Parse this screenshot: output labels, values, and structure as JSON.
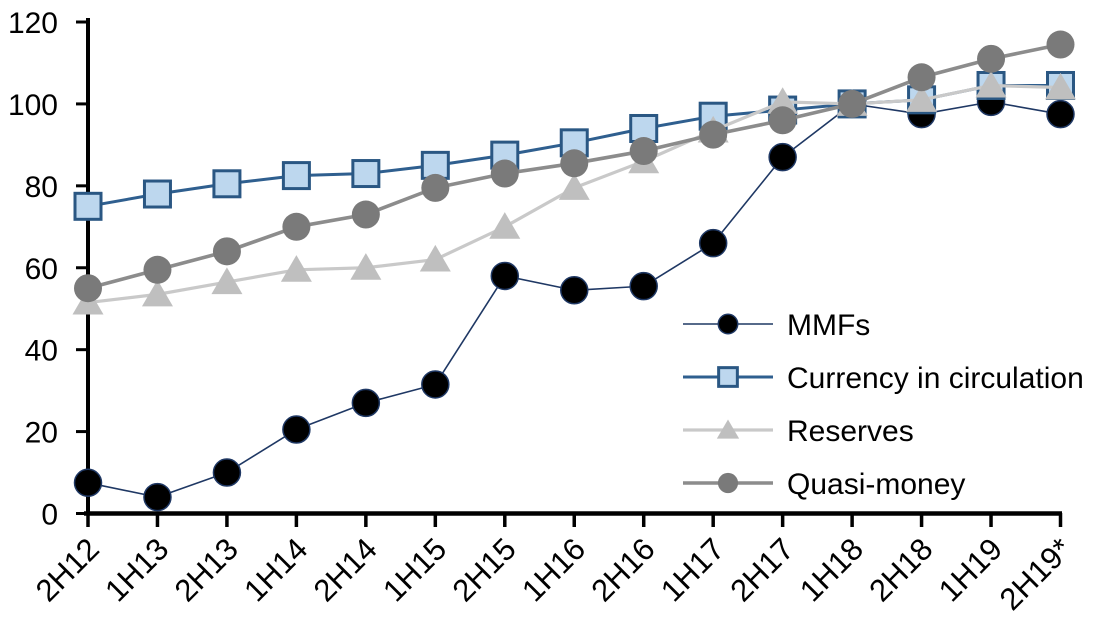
{
  "chart_data": {
    "type": "line",
    "title": "",
    "xlabel": "",
    "ylabel": "",
    "grid": false,
    "background_color": "#ffffff",
    "axis_color": "#000000",
    "ylim": [
      0,
      120
    ],
    "yticks": [
      0,
      20,
      40,
      60,
      80,
      100,
      120
    ],
    "y_tick_labels": [
      "0",
      "20",
      "40",
      "60",
      "80",
      "100",
      "120"
    ],
    "categories": [
      "2H12",
      "1H13",
      "2H13",
      "1H14",
      "2H14",
      "1H15",
      "2H15",
      "1H16",
      "2H16",
      "1H17",
      "2H17",
      "1H18",
      "2H18",
      "1H19",
      "2H19*"
    ],
    "legend_position": "inside-right",
    "series": [
      {
        "name": "MMFs",
        "values": [
          7.5,
          4,
          10,
          20.5,
          27,
          31.5,
          58,
          54.5,
          55.5,
          66,
          87,
          100,
          97.5,
          100.5,
          97.5
        ],
        "marker": "circle",
        "marker_size": 27,
        "marker_fill": "#000000",
        "marker_stroke": "#1F3864",
        "marker_stroke_width": 1.5,
        "line_color": "#1F3864",
        "line_width": 1.6
      },
      {
        "name": "Currency in circulation",
        "values": [
          75,
          78,
          80.5,
          82.5,
          83,
          85,
          87.5,
          90.5,
          94,
          97,
          98.5,
          100,
          101,
          104.5,
          104.5
        ],
        "marker": "square",
        "marker_size": 26,
        "marker_fill": "#BDD7EE",
        "marker_stroke": "#2A5783",
        "marker_stroke_width": 3,
        "line_color": "#2F5F8F",
        "line_width": 3
      },
      {
        "name": "Reserves",
        "values": [
          51.5,
          53.5,
          56.5,
          59.5,
          60,
          62,
          70,
          79.5,
          86,
          93.5,
          100.5,
          100,
          101,
          104.5,
          104
        ],
        "marker": "triangle",
        "marker_size": 31,
        "marker_fill": "#BFBFBF",
        "marker_stroke": "none",
        "marker_stroke_width": 0,
        "line_color": "#C9C9C9",
        "line_width": 3.2
      },
      {
        "name": "Quasi-money",
        "values": [
          55,
          59.5,
          64,
          70,
          73,
          79.5,
          83,
          85.5,
          88.5,
          92.5,
          96,
          100,
          106.5,
          111,
          114.5
        ],
        "marker": "circle",
        "marker_size": 28,
        "marker_fill": "#7A7A7A",
        "marker_stroke": "none",
        "marker_stroke_width": 0,
        "line_color": "#8C8C8C",
        "line_width": 3.6
      }
    ]
  }
}
